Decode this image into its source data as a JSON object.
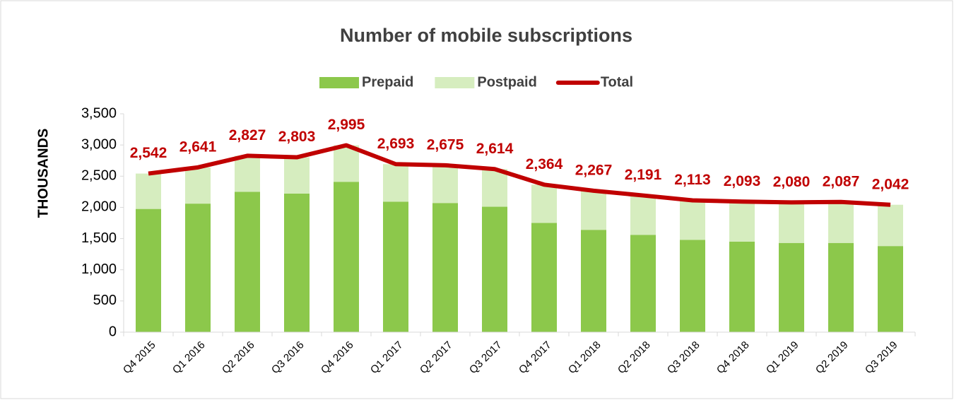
{
  "chart_data": {
    "type": "bar",
    "stacked": true,
    "title": "Number of mobile subscriptions",
    "y_label": "THOUSANDS",
    "categories": [
      "Q4 2015",
      "Q1 2016",
      "Q2 2016",
      "Q3 2016",
      "Q4 2016",
      "Q1 2017",
      "Q2 2017",
      "Q3 2017",
      "Q4 2017",
      "Q1 2018",
      "Q2 2018",
      "Q3 2018",
      "Q4 2018",
      "Q1 2019",
      "Q2 2019",
      "Q3 2019"
    ],
    "series": [
      {
        "name": "Prepaid",
        "type": "bar",
        "color": "#8cc84b",
        "values": [
          1975,
          2060,
          2250,
          2220,
          2410,
          2090,
          2070,
          2010,
          1750,
          1640,
          1560,
          1480,
          1450,
          1430,
          1430,
          1380
        ]
      },
      {
        "name": "Postpaid",
        "type": "bar",
        "color": "#d6edbf",
        "values": [
          567,
          581,
          577,
          583,
          585,
          603,
          605,
          604,
          614,
          627,
          631,
          633,
          643,
          650,
          657,
          662
        ]
      },
      {
        "name": "Total",
        "type": "line",
        "color": "#c00000",
        "values": [
          2542,
          2641,
          2827,
          2803,
          2995,
          2693,
          2675,
          2614,
          2364,
          2267,
          2191,
          2113,
          2093,
          2080,
          2087,
          2042
        ],
        "value_labels": [
          "2,542",
          "2,641",
          "2,827",
          "2,803",
          "2,995",
          "2,693",
          "2,675",
          "2,614",
          "2,364",
          "2,267",
          "2,191",
          "2,113",
          "2,093",
          "2,080",
          "2,087",
          "2,042"
        ]
      }
    ],
    "ylim": [
      0,
      3500
    ],
    "yticks": [
      0,
      500,
      {
        "value": 1000,
        "label": "1,000"
      },
      {
        "value": 1500,
        "label": "1,500"
      },
      {
        "value": 2000,
        "label": "2,000"
      },
      {
        "value": 2500,
        "label": "2,500"
      },
      {
        "value": 3000,
        "label": "3,000"
      },
      {
        "value": 3500,
        "label": "3,500"
      }
    ],
    "grid": false,
    "legend": "top"
  }
}
